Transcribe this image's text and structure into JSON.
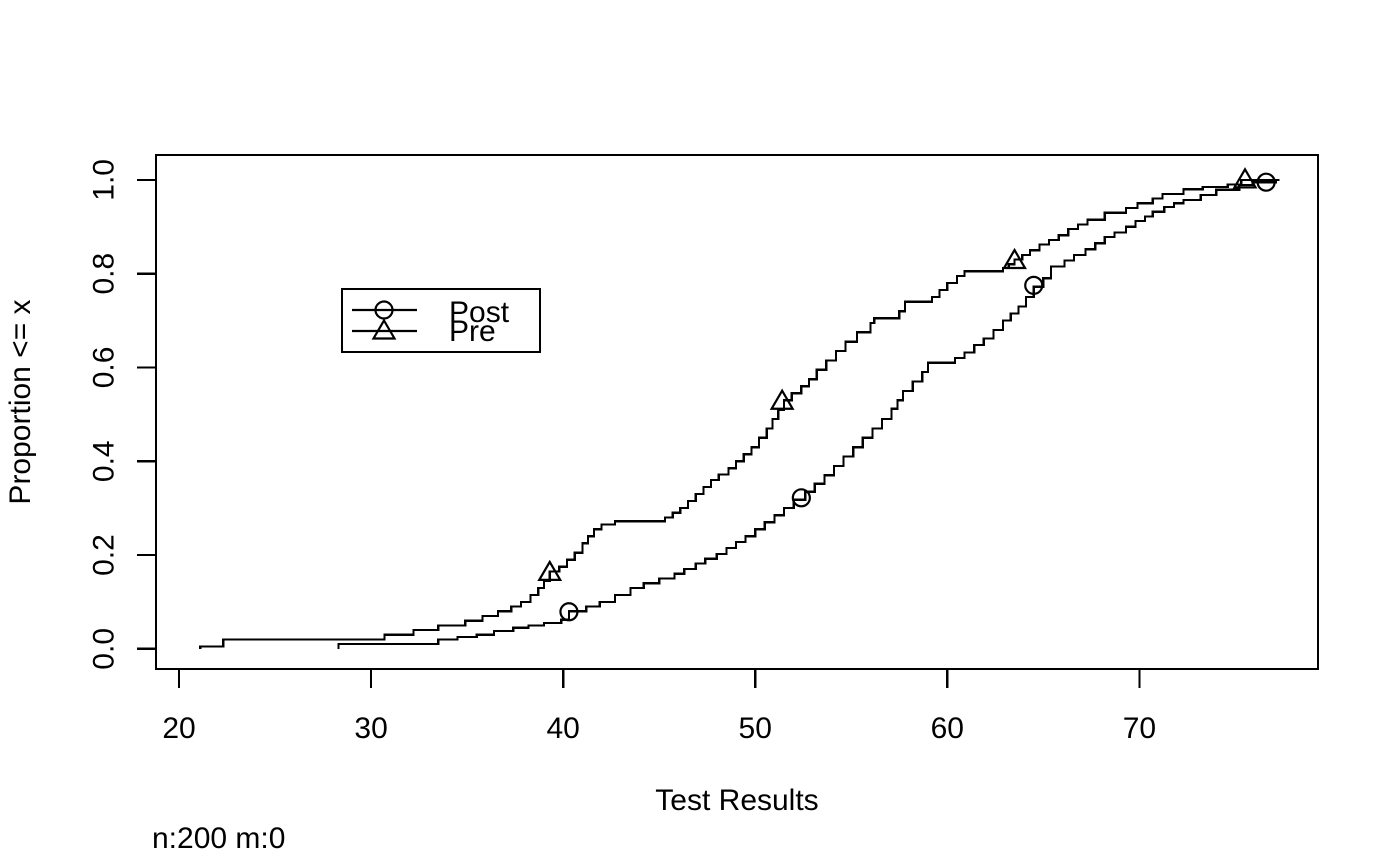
{
  "chart_data": {
    "type": "line",
    "subtype": "ecdf-step",
    "title": "",
    "xlabel": "Test Results",
    "ylabel": "Proportion <= x",
    "footnote": "n:200 m:0",
    "xlim": [
      18.8,
      79.3
    ],
    "ylim": [
      -0.043,
      1.053
    ],
    "x_tick_values": [
      20,
      30,
      40,
      50,
      60,
      70
    ],
    "x_tick_labels": [
      "20",
      "30",
      "40",
      "50",
      "60",
      "70"
    ],
    "y_tick_values": [
      0.0,
      0.2,
      0.4,
      0.6,
      0.8,
      1.0
    ],
    "y_tick_labels": [
      "0.0",
      "0.2",
      "0.4",
      "0.6",
      "0.8",
      "1.0"
    ],
    "grid": false,
    "line_color": "#000000",
    "legend": {
      "position": "inside-upper-left",
      "entries": [
        {
          "label": "Post",
          "marker": "circle"
        },
        {
          "label": "Pre",
          "marker": "triangle"
        }
      ]
    },
    "series": [
      {
        "name": "Post",
        "marker": "circle",
        "end_x": 77.3,
        "marker_points": [
          [
            40.3,
            0.079
          ],
          [
            52.4,
            0.322
          ],
          [
            64.5,
            0.775
          ],
          [
            76.6,
            0.995
          ]
        ],
        "points": [
          [
            28.3,
            0.01
          ],
          [
            33.5,
            0.02
          ],
          [
            34.5,
            0.025
          ],
          [
            35.5,
            0.03
          ],
          [
            36.4,
            0.038
          ],
          [
            37.4,
            0.045
          ],
          [
            38.2,
            0.05
          ],
          [
            39.0,
            0.055
          ],
          [
            39.9,
            0.062
          ],
          [
            40.3,
            0.08
          ],
          [
            41.2,
            0.09
          ],
          [
            41.9,
            0.1
          ],
          [
            42.7,
            0.115
          ],
          [
            43.5,
            0.13
          ],
          [
            44.2,
            0.14
          ],
          [
            45.0,
            0.15
          ],
          [
            45.8,
            0.16
          ],
          [
            46.3,
            0.17
          ],
          [
            46.9,
            0.182
          ],
          [
            47.4,
            0.192
          ],
          [
            48.0,
            0.202
          ],
          [
            48.5,
            0.215
          ],
          [
            49.0,
            0.228
          ],
          [
            49.5,
            0.24
          ],
          [
            50.0,
            0.255
          ],
          [
            50.5,
            0.27
          ],
          [
            51.0,
            0.285
          ],
          [
            51.5,
            0.3
          ],
          [
            52.0,
            0.318
          ],
          [
            52.6,
            0.335
          ],
          [
            53.1,
            0.352
          ],
          [
            53.6,
            0.37
          ],
          [
            54.1,
            0.39
          ],
          [
            54.6,
            0.41
          ],
          [
            55.1,
            0.43
          ],
          [
            55.6,
            0.45
          ],
          [
            56.1,
            0.47
          ],
          [
            56.6,
            0.49
          ],
          [
            57.1,
            0.512
          ],
          [
            57.4,
            0.53
          ],
          [
            57.7,
            0.55
          ],
          [
            58.2,
            0.57
          ],
          [
            58.7,
            0.59
          ],
          [
            59.0,
            0.61
          ],
          [
            60.4,
            0.62
          ],
          [
            60.9,
            0.632
          ],
          [
            61.4,
            0.648
          ],
          [
            61.9,
            0.662
          ],
          [
            62.4,
            0.68
          ],
          [
            62.9,
            0.7
          ],
          [
            63.3,
            0.715
          ],
          [
            63.7,
            0.73
          ],
          [
            64.1,
            0.75
          ],
          [
            64.5,
            0.772
          ],
          [
            65.0,
            0.79
          ],
          [
            65.4,
            0.815
          ],
          [
            66.1,
            0.828
          ],
          [
            66.6,
            0.84
          ],
          [
            67.2,
            0.852
          ],
          [
            67.7,
            0.865
          ],
          [
            68.2,
            0.878
          ],
          [
            68.7,
            0.888
          ],
          [
            69.3,
            0.9
          ],
          [
            69.8,
            0.912
          ],
          [
            70.3,
            0.922
          ],
          [
            70.7,
            0.932
          ],
          [
            71.3,
            0.942
          ],
          [
            71.8,
            0.95
          ],
          [
            72.3,
            0.957
          ],
          [
            73.2,
            0.968
          ],
          [
            74.0,
            0.979
          ],
          [
            75.2,
            0.989
          ],
          [
            75.9,
            0.995
          ],
          [
            77.1,
            1.0
          ]
        ]
      },
      {
        "name": "Pre",
        "marker": "triangle",
        "end_x": 77.2,
        "marker_points": [
          [
            39.3,
            0.163
          ],
          [
            51.4,
            0.528
          ],
          [
            63.5,
            0.828
          ],
          [
            75.5,
            1.0
          ]
        ],
        "points": [
          [
            21.1,
            0.005
          ],
          [
            22.3,
            0.02
          ],
          [
            30.7,
            0.03
          ],
          [
            32.2,
            0.04
          ],
          [
            33.5,
            0.05
          ],
          [
            34.9,
            0.06
          ],
          [
            35.8,
            0.07
          ],
          [
            36.6,
            0.08
          ],
          [
            37.3,
            0.09
          ],
          [
            37.8,
            0.1
          ],
          [
            38.3,
            0.115
          ],
          [
            38.7,
            0.13
          ],
          [
            39.0,
            0.145
          ],
          [
            39.3,
            0.165
          ],
          [
            39.8,
            0.175
          ],
          [
            40.2,
            0.19
          ],
          [
            40.6,
            0.205
          ],
          [
            41.0,
            0.225
          ],
          [
            41.3,
            0.24
          ],
          [
            41.6,
            0.255
          ],
          [
            42.0,
            0.265
          ],
          [
            42.7,
            0.272
          ],
          [
            45.3,
            0.28
          ],
          [
            45.7,
            0.29
          ],
          [
            46.1,
            0.3
          ],
          [
            46.5,
            0.315
          ],
          [
            46.9,
            0.33
          ],
          [
            47.3,
            0.345
          ],
          [
            47.7,
            0.36
          ],
          [
            48.1,
            0.372
          ],
          [
            48.6,
            0.385
          ],
          [
            49.0,
            0.4
          ],
          [
            49.4,
            0.415
          ],
          [
            49.8,
            0.43
          ],
          [
            50.2,
            0.45
          ],
          [
            50.6,
            0.47
          ],
          [
            50.9,
            0.49
          ],
          [
            51.2,
            0.51
          ],
          [
            51.5,
            0.53
          ],
          [
            51.9,
            0.545
          ],
          [
            52.4,
            0.56
          ],
          [
            52.8,
            0.575
          ],
          [
            53.2,
            0.595
          ],
          [
            53.7,
            0.615
          ],
          [
            54.2,
            0.635
          ],
          [
            54.7,
            0.655
          ],
          [
            55.3,
            0.675
          ],
          [
            56.0,
            0.695
          ],
          [
            56.2,
            0.705
          ],
          [
            57.5,
            0.72
          ],
          [
            57.8,
            0.74
          ],
          [
            59.2,
            0.75
          ],
          [
            59.6,
            0.765
          ],
          [
            60.0,
            0.78
          ],
          [
            60.5,
            0.795
          ],
          [
            60.9,
            0.805
          ],
          [
            62.9,
            0.812
          ],
          [
            63.2,
            0.82
          ],
          [
            63.5,
            0.83
          ],
          [
            63.9,
            0.84
          ],
          [
            64.3,
            0.85
          ],
          [
            64.8,
            0.862
          ],
          [
            65.3,
            0.872
          ],
          [
            65.8,
            0.882
          ],
          [
            66.3,
            0.895
          ],
          [
            66.8,
            0.905
          ],
          [
            67.3,
            0.915
          ],
          [
            68.2,
            0.93
          ],
          [
            69.3,
            0.94
          ],
          [
            69.9,
            0.95
          ],
          [
            70.7,
            0.96
          ],
          [
            71.2,
            0.97
          ],
          [
            72.3,
            0.98
          ],
          [
            73.3,
            0.985
          ],
          [
            74.6,
            0.99
          ],
          [
            75.3,
            1.0
          ]
        ]
      }
    ]
  }
}
